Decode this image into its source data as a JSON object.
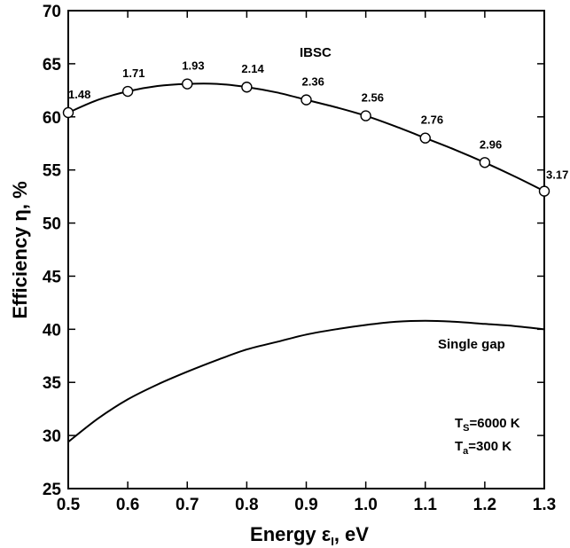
{
  "chart_data": {
    "type": "line",
    "xlabel": "Energy ε",
    "xlabel_sub": "I",
    "xlabel_unit": ", eV",
    "ylabel": "Efficiency η, %",
    "xlim": [
      0.5,
      1.3
    ],
    "ylim": [
      25,
      70
    ],
    "x_ticks": [
      "0.5",
      "0.6",
      "0.7",
      "0.8",
      "0.9",
      "1.0",
      "1.1",
      "1.2",
      "1.3"
    ],
    "y_ticks": [
      "25",
      "30",
      "35",
      "40",
      "45",
      "50",
      "55",
      "60",
      "65",
      "70"
    ],
    "grid": false,
    "series": [
      {
        "name": "IBSC",
        "markers": "open-circle",
        "x": [
          0.5,
          0.6,
          0.7,
          0.8,
          0.9,
          1.0,
          1.1,
          1.2,
          1.3
        ],
        "y": [
          60.4,
          62.4,
          63.1,
          62.8,
          61.6,
          60.1,
          58.0,
          55.7,
          53.0
        ],
        "point_labels": [
          "1.48",
          "1.71",
          "1.93",
          "2.14",
          "2.36",
          "2.56",
          "2.76",
          "2.96",
          "3.17"
        ],
        "curve_x": [
          0.5,
          0.55,
          0.6,
          0.65,
          0.7,
          0.75,
          0.8,
          0.85,
          0.9,
          0.95,
          1.0,
          1.05,
          1.1,
          1.15,
          1.2,
          1.25,
          1.3
        ],
        "curve_y": [
          60.4,
          61.6,
          62.4,
          62.9,
          63.1,
          63.1,
          62.8,
          62.3,
          61.6,
          60.9,
          60.1,
          59.1,
          58.0,
          56.9,
          55.7,
          54.4,
          53.0
        ]
      },
      {
        "name": "Single gap",
        "markers": "none",
        "curve_x": [
          0.5,
          0.55,
          0.6,
          0.65,
          0.7,
          0.75,
          0.8,
          0.85,
          0.9,
          0.95,
          1.0,
          1.05,
          1.1,
          1.15,
          1.2,
          1.25,
          1.3
        ],
        "curve_y": [
          29.4,
          31.6,
          33.4,
          34.8,
          36.0,
          37.1,
          38.1,
          38.8,
          39.5,
          40.0,
          40.4,
          40.7,
          40.8,
          40.7,
          40.5,
          40.3,
          40.0
        ]
      }
    ],
    "annotations": {
      "ts_main": "T",
      "ts_sub": "S",
      "ts_rest": "=6000 K",
      "ta_main": "T",
      "ta_sub": "a",
      "ta_rest": "=300 K"
    }
  }
}
